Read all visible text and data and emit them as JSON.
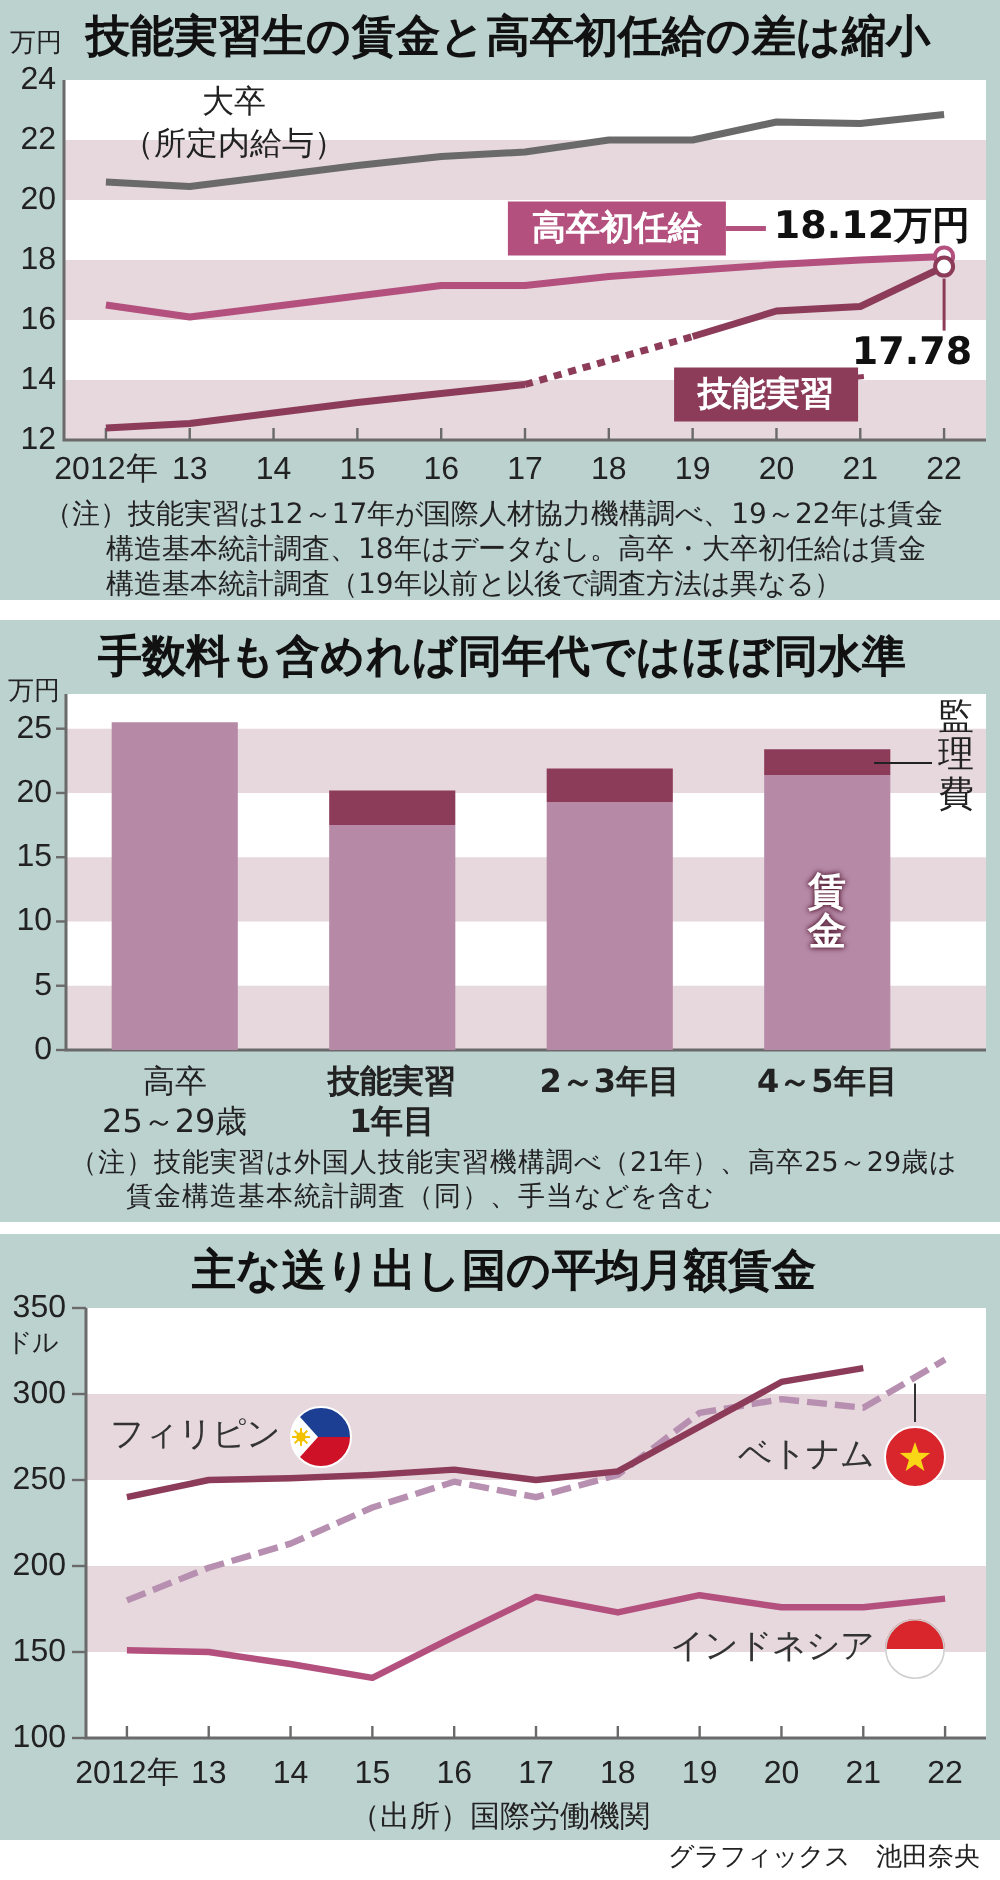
{
  "chart_data": [
    {
      "type": "line",
      "title": "技能実習生の賃金と高卒初任給の差は縮小",
      "ylabel": "万円",
      "x": [
        2012,
        2013,
        2014,
        2015,
        2016,
        2017,
        2018,
        2019,
        2020,
        2021,
        2022
      ],
      "xlim": [
        2011.5,
        2022.5
      ],
      "xticks": [
        {
          "value": 2012,
          "label": "2012年"
        },
        {
          "value": 2013,
          "label": "13"
        },
        {
          "value": 2014,
          "label": "14"
        },
        {
          "value": 2015,
          "label": "15"
        },
        {
          "value": 2016,
          "label": "16"
        },
        {
          "value": 2017,
          "label": "17"
        },
        {
          "value": 2018,
          "label": "18"
        },
        {
          "value": 2019,
          "label": "19"
        },
        {
          "value": 2020,
          "label": "20"
        },
        {
          "value": 2021,
          "label": "21"
        },
        {
          "value": 2022,
          "label": "22"
        }
      ],
      "ylim": [
        12,
        24
      ],
      "yticks": [
        12,
        14,
        16,
        18,
        20,
        22,
        24
      ],
      "legend": "right",
      "bands": [
        {
          "axis": "y",
          "from": 20,
          "to": 22,
          "color": "#e6d8dc"
        },
        {
          "axis": "y",
          "from": 16,
          "to": 18,
          "color": "#e6d8dc"
        },
        {
          "axis": "y",
          "from": 12,
          "to": 14,
          "color": "#e6d8dc"
        }
      ],
      "series": [
        {
          "name": "大卒（所定内給与）",
          "color": "#6a6a6a",
          "values": [
            20.6,
            20.45,
            20.8,
            21.15,
            21.45,
            21.6,
            22.0,
            22.0,
            22.6,
            22.55,
            22.85
          ]
        },
        {
          "name": "高卒初任給",
          "color": "#b3507e",
          "values": [
            16.5,
            16.1,
            16.45,
            16.8,
            17.15,
            17.15,
            17.45,
            17.65,
            17.85,
            18.0,
            18.12
          ],
          "value_labels": [
            null,
            null,
            null,
            null,
            null,
            null,
            null,
            null,
            null,
            null,
            "18.12万円"
          ]
        },
        {
          "name": "技能実習",
          "color": "#8c3b58",
          "values": [
            12.4,
            12.55,
            12.9,
            13.25,
            13.55,
            13.85,
            null,
            15.45,
            16.3,
            16.45,
            17.78
          ],
          "value_labels": [
            null,
            null,
            null,
            null,
            null,
            null,
            null,
            null,
            null,
            null,
            "17.78"
          ]
        }
      ],
      "annotations": [
        "（注）技能実習は12～17年が国際人材協力機構調べ、19～22年は賃金構造基本統計調査、18年はデータなし。高卒・大卒初任給は賃金構造基本統計調査（19年以前と以後で調査方法は異なる）"
      ]
    },
    {
      "type": "bar",
      "title": "手数料も含めれば同年代ではほぼ同水準",
      "ylabel": "万円",
      "categories": [
        "高卒\n25～29歳",
        "技能実習\n1年目",
        "2～3年目",
        "4～5年目"
      ],
      "stacked": true,
      "ylim": [
        0,
        27.7
      ],
      "yticks": [
        0,
        5,
        10,
        15,
        20,
        25
      ],
      "bands": [
        {
          "axis": "y",
          "from": 0,
          "to": 5,
          "color": "#e6d8dc"
        },
        {
          "axis": "y",
          "from": 10,
          "to": 15,
          "color": "#e6d8dc"
        },
        {
          "axis": "y",
          "from": 20,
          "to": 25,
          "color": "#e6d8dc"
        }
      ],
      "series": [
        {
          "name": "賃金",
          "color": "#b68aa7",
          "values": [
            25.5,
            17.5,
            19.3,
            21.4
          ]
        },
        {
          "name": "監理費",
          "color": "#8c3b58",
          "values": [
            null,
            2.7,
            2.6,
            2.0
          ]
        }
      ],
      "annotations": [
        "（注）技能実習は外国人技能実習機構調べ（21年）、高卒25～29歳は賃金構造基本統計調査（同）、手当などを含む"
      ]
    },
    {
      "type": "line",
      "title": "主な送り出し国の平均月額賃金",
      "ylabel": "ドル",
      "x": [
        2012,
        2013,
        2014,
        2015,
        2016,
        2017,
        2018,
        2019,
        2020,
        2021,
        2022
      ],
      "xlim": [
        2011.5,
        2022.5
      ],
      "xticks": [
        {
          "value": 2012,
          "label": "2012年"
        },
        {
          "value": 2013,
          "label": "13"
        },
        {
          "value": 2014,
          "label": "14"
        },
        {
          "value": 2015,
          "label": "15"
        },
        {
          "value": 2016,
          "label": "16"
        },
        {
          "value": 2017,
          "label": "17"
        },
        {
          "value": 2018,
          "label": "18"
        },
        {
          "value": 2019,
          "label": "19"
        },
        {
          "value": 2020,
          "label": "20"
        },
        {
          "value": 2021,
          "label": "21"
        },
        {
          "value": 2022,
          "label": "22"
        }
      ],
      "ylim": [
        100,
        350
      ],
      "yticks": [
        100,
        150,
        200,
        250,
        300,
        350
      ],
      "bands": [
        {
          "axis": "y",
          "from": 250,
          "to": 300,
          "color": "#e6d8dc"
        },
        {
          "axis": "y",
          "from": 150,
          "to": 200,
          "color": "#e6d8dc"
        }
      ],
      "series": [
        {
          "name": "フィリピン",
          "color": "#8c3b58",
          "values": [
            240,
            250,
            251,
            253,
            256,
            250,
            255,
            281,
            307,
            315,
            null
          ]
        },
        {
          "name": "ベトナム",
          "color": "#b78fb0",
          "line_style": "dashed",
          "values": [
            180,
            199,
            213,
            234,
            249,
            240,
            253,
            289,
            297,
            292,
            320
          ]
        },
        {
          "name": "インドネシア",
          "color": "#b3507e",
          "values": [
            151,
            150,
            143,
            135,
            159,
            182,
            173,
            183,
            176,
            176,
            181
          ]
        }
      ],
      "annotations": [
        "（出所）国際労働機関",
        "グラフィックス　池田奈央"
      ]
    }
  ]
}
